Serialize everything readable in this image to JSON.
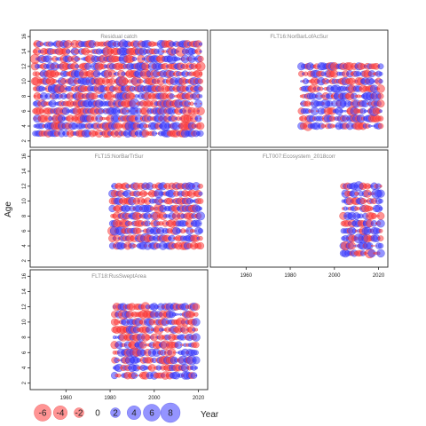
{
  "chart_data": {
    "type": "scatter",
    "kind": "bubble-residuals",
    "ylabel": "Age",
    "xlabel": "Year",
    "colors": {
      "positive": "#4040ff",
      "negative": "#ff4040"
    },
    "ylim": [
      1.5,
      16.5
    ],
    "yticks": [
      "2",
      "4",
      "6",
      "8",
      "10",
      "12",
      "14",
      "16"
    ],
    "xlim": [
      1945,
      2023
    ],
    "xticks": [
      "1960",
      "1980",
      "2000",
      "2020"
    ],
    "legend": {
      "values": [
        -6,
        -4,
        -2,
        0,
        2,
        4,
        6,
        8
      ],
      "labels": [
        "-6",
        "-4",
        "-2",
        "0",
        "2",
        "4",
        "6",
        "8"
      ]
    },
    "panels": [
      {
        "title": "Residual catch",
        "years": [
          1946,
          2021
        ],
        "ages": [
          3,
          15
        ],
        "max_value": 8
      },
      {
        "title": "FLT16:NorBarLofAcSur",
        "years": [
          1985,
          2021
        ],
        "ages": [
          4,
          12
        ],
        "max_value": 6
      },
      {
        "title": "FLT15:NorBarTrSur",
        "years": [
          1981,
          2021
        ],
        "ages": [
          4,
          12
        ],
        "max_value": 6
      },
      {
        "title": "FLT007:Ecosystem_2018corr",
        "years": [
          2004,
          2021
        ],
        "ages": [
          3,
          12
        ],
        "max_value": 5
      },
      {
        "title": "FLT18:RusSweptArea",
        "years": [
          1982,
          2019
        ],
        "ages": [
          3,
          12
        ],
        "max_value": 6
      }
    ]
  }
}
